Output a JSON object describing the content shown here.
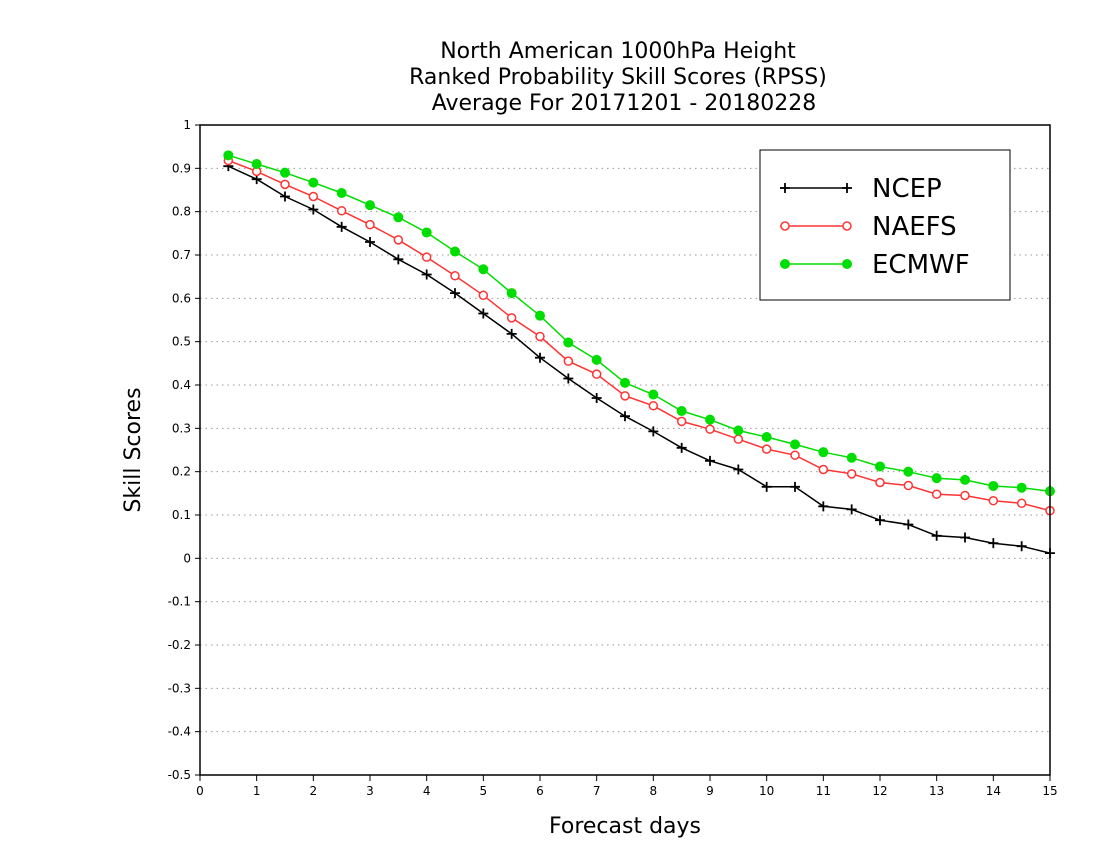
{
  "chart_data": {
    "type": "line",
    "title_lines": [
      "North American 1000hPa Height",
      "Ranked Probability Skill Scores (RPSS)",
      "Average For 20171201 - 20180228"
    ],
    "xlabel": "Forecast days",
    "ylabel": "Skill Scores",
    "xlim": [
      0,
      15
    ],
    "ylim": [
      -0.5,
      1
    ],
    "x_ticks": [
      0,
      1,
      2,
      3,
      4,
      5,
      6,
      7,
      8,
      9,
      10,
      11,
      12,
      13,
      14,
      15
    ],
    "y_ticks": [
      -0.5,
      -0.4,
      -0.3,
      -0.2,
      -0.1,
      0,
      0.1,
      0.2,
      0.3,
      0.4,
      0.5,
      0.6,
      0.7,
      0.8,
      0.9,
      1
    ],
    "y_grid": "dotted",
    "legend_position": "top-right",
    "x": [
      0.5,
      1,
      1.5,
      2,
      2.5,
      3,
      3.5,
      4,
      4.5,
      5,
      5.5,
      6,
      6.5,
      7,
      7.5,
      8,
      8.5,
      9,
      9.5,
      10,
      10.5,
      11,
      11.5,
      12,
      12.5,
      13,
      13.5,
      14,
      14.5,
      15
    ],
    "series": [
      {
        "name": "NCEP",
        "color": "#000000",
        "marker": "plus",
        "values": [
          0.905,
          0.875,
          0.835,
          0.805,
          0.765,
          0.73,
          0.69,
          0.655,
          0.612,
          0.565,
          0.518,
          0.463,
          0.415,
          0.37,
          0.328,
          0.293,
          0.255,
          0.225,
          0.205,
          0.165,
          0.165,
          0.12,
          0.113,
          0.088,
          0.078,
          0.052,
          0.048,
          0.035,
          0.028,
          0.012
        ]
      },
      {
        "name": "NAEFS",
        "color": "#ff3333",
        "marker": "open-circle",
        "values": [
          0.918,
          0.893,
          0.863,
          0.835,
          0.802,
          0.77,
          0.735,
          0.695,
          0.652,
          0.607,
          0.555,
          0.512,
          0.455,
          0.425,
          0.375,
          0.352,
          0.316,
          0.298,
          0.275,
          0.252,
          0.238,
          0.205,
          0.195,
          0.175,
          0.168,
          0.148,
          0.145,
          0.133,
          0.127,
          0.11
        ]
      },
      {
        "name": "ECMWF",
        "color": "#00dd00",
        "marker": "filled-circle",
        "values": [
          0.93,
          0.91,
          0.89,
          0.867,
          0.843,
          0.815,
          0.787,
          0.752,
          0.708,
          0.667,
          0.612,
          0.56,
          0.498,
          0.458,
          0.405,
          0.378,
          0.34,
          0.32,
          0.295,
          0.28,
          0.263,
          0.245,
          0.232,
          0.212,
          0.2,
          0.185,
          0.181,
          0.167,
          0.163,
          0.155
        ]
      }
    ]
  }
}
